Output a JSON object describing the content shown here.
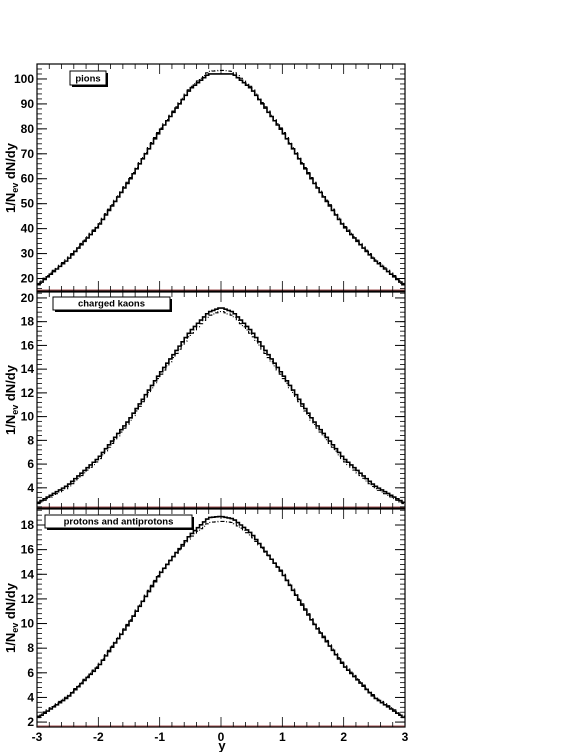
{
  "chart_data": [
    {
      "type": "line",
      "label": "pions",
      "ylabel_main": "1/N",
      "ylabel_sub": "ev",
      "ylabel_rest": " dN/dy",
      "xlim": [
        -3,
        3
      ],
      "ylim": [
        15,
        106
      ],
      "yticks": [
        20,
        30,
        40,
        50,
        60,
        70,
        80,
        90,
        100
      ],
      "x": [
        -3.0,
        -2.5,
        -2.0,
        -1.5,
        -1.0,
        -0.5,
        -0.2,
        0.0,
        0.2,
        0.5,
        1.0,
        1.5,
        2.0,
        2.5,
        3.0
      ],
      "series": [
        {
          "style": "solid",
          "values": [
            17,
            27.5,
            41,
            59,
            79,
            96,
            102,
            102,
            102,
            96,
            79,
            59,
            41,
            27.5,
            17
          ]
        },
        {
          "style": "dashed",
          "values": [
            17.5,
            28,
            41.5,
            59.5,
            79.5,
            96.5,
            103,
            103.5,
            103,
            96.5,
            79.5,
            59.5,
            41.5,
            28,
            17.5
          ]
        }
      ]
    },
    {
      "type": "line",
      "label": "charged kaons",
      "ylabel_main": "1/N",
      "ylabel_sub": "ev",
      "ylabel_rest": " dN/dy",
      "xlim": [
        -3,
        3
      ],
      "ylim": [
        2.3,
        20.5
      ],
      "yticks": [
        4,
        6,
        8,
        10,
        12,
        14,
        16,
        18,
        20
      ],
      "x": [
        -3.0,
        -2.5,
        -2.0,
        -1.5,
        -1.0,
        -0.5,
        -0.2,
        0.0,
        0.2,
        0.5,
        1.0,
        1.5,
        2.0,
        2.5,
        3.0
      ],
      "series": [
        {
          "style": "solid",
          "values": [
            2.7,
            4.2,
            6.5,
            9.7,
            13.6,
            17.2,
            18.8,
            19.2,
            18.8,
            17.2,
            13.6,
            9.7,
            6.5,
            4.2,
            2.7
          ]
        },
        {
          "style": "dashed",
          "values": [
            2.6,
            4.0,
            6.3,
            9.5,
            13.4,
            16.9,
            18.5,
            18.9,
            18.5,
            16.9,
            13.4,
            9.5,
            6.3,
            4.0,
            2.6
          ]
        }
      ]
    },
    {
      "type": "line",
      "label": "protons and antiprotons",
      "ylabel_main": "1/N",
      "ylabel_sub": "ev",
      "ylabel_rest": " dN/dy",
      "xlabel": "y",
      "xlim": [
        -3,
        3
      ],
      "ylim": [
        1.6,
        19.3
      ],
      "yticks": [
        2,
        4,
        6,
        8,
        10,
        12,
        14,
        16,
        18
      ],
      "xticks": [
        -3,
        -2,
        -1,
        0,
        1,
        2,
        3
      ],
      "x": [
        -3.0,
        -2.5,
        -2.0,
        -1.5,
        -1.0,
        -0.5,
        -0.2,
        0.0,
        0.2,
        0.5,
        1.0,
        1.5,
        2.0,
        2.5,
        3.0
      ],
      "series": [
        {
          "style": "solid",
          "values": [
            2.3,
            4.0,
            6.5,
            10.0,
            14.0,
            17.2,
            18.6,
            18.7,
            18.5,
            17.3,
            14.1,
            10.1,
            6.6,
            4.0,
            2.3
          ]
        },
        {
          "style": "dashed",
          "values": [
            2.4,
            4.1,
            6.6,
            10.1,
            14.1,
            17.0,
            18.2,
            18.3,
            18.2,
            17.1,
            14.2,
            10.2,
            6.7,
            4.1,
            2.4
          ]
        }
      ]
    }
  ]
}
